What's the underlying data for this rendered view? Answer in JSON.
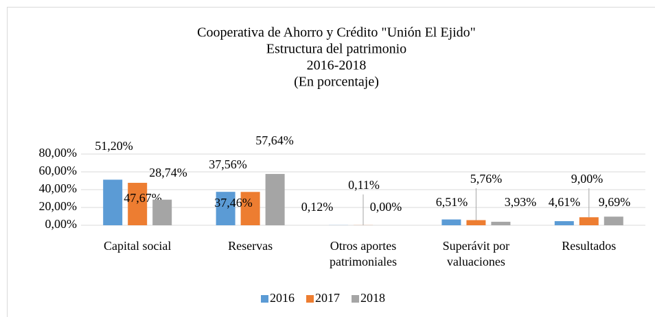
{
  "chart_data": {
    "type": "bar",
    "title": [
      "Cooperativa de Ahorro y Crédito \"Unión El Ejido\"",
      "Estructura del patrimonio",
      "2016-2018",
      "(En porcentaje)"
    ],
    "categories": [
      [
        "Capital social"
      ],
      [
        "Reservas"
      ],
      [
        "Otros aportes",
        "patrimoniales"
      ],
      [
        "Superávit por",
        "valuaciones"
      ],
      [
        "Resultados"
      ]
    ],
    "series": [
      {
        "name": "2016",
        "color": "#5b9bd5",
        "values": [
          51.2,
          37.56,
          0.12,
          6.51,
          4.61
        ],
        "value_labels": [
          "51,20%",
          "37,56%",
          "0,12%",
          "6,51%",
          "4,61%"
        ]
      },
      {
        "name": "2017",
        "color": "#ed7d31",
        "values": [
          47.67,
          37.46,
          0.11,
          5.76,
          9.0
        ],
        "value_labels": [
          "47,67%",
          "37,46%",
          "0,11%",
          "5,76%",
          "9,00%"
        ]
      },
      {
        "name": "2018",
        "color": "#a5a5a5",
        "values": [
          28.74,
          57.64,
          0.0,
          3.93,
          9.69
        ],
        "value_labels": [
          "28,74%",
          "57,64%",
          "0,00%",
          "3,93%",
          "9,69%"
        ]
      }
    ],
    "ylim": [
      0,
      80
    ],
    "yticks": [
      {
        "value": 0,
        "label": "0,00%"
      },
      {
        "value": 20,
        "label": "20,00%"
      },
      {
        "value": 40,
        "label": "40,00%"
      },
      {
        "value": 60,
        "label": "60,00%"
      },
      {
        "value": 80,
        "label": "80,00%"
      }
    ],
    "grid": true,
    "legend": "bottom"
  }
}
